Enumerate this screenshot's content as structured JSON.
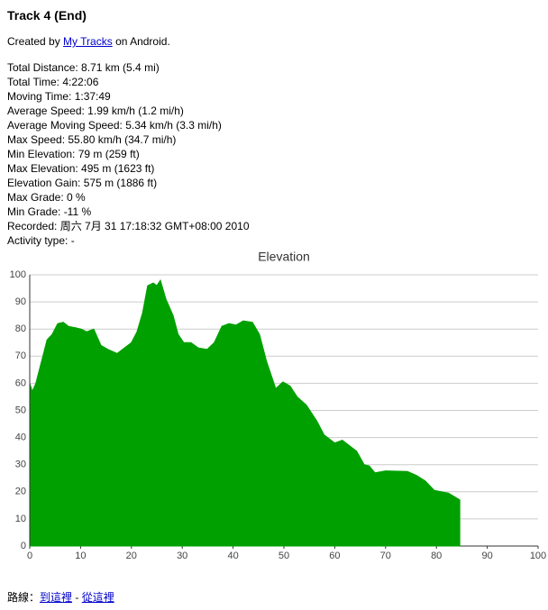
{
  "header": {
    "title": "Track 4 (End)"
  },
  "created": {
    "before": "Created by",
    "link": "My Tracks",
    "after": "on Android."
  },
  "stats": [
    "Total Distance: 8.71 km (5.4 mi)",
    "Total Time: 4:22:06",
    "Moving Time: 1:37:49",
    "Average Speed: 1.99 km/h (1.2 mi/h)",
    "Average Moving Speed: 5.34 km/h (3.3 mi/h)",
    "Max Speed: 55.80 km/h (34.7 mi/h)",
    "Min Elevation: 79 m (259 ft)",
    "Max Elevation: 495 m (1623 ft)",
    "Elevation Gain: 575 m (1886 ft)",
    "Max Grade: 0 %",
    "Min Grade: -11 %",
    "Recorded: 周六 7月 31 17:18:32 GMT+08:00 2010",
    "Activity type: -"
  ],
  "chart_data": {
    "type": "area",
    "title": "Elevation",
    "color": "#00a000",
    "grid": true,
    "x": [
      0,
      0.5,
      1.2,
      2.3,
      3.4,
      4.4,
      5.5,
      6.6,
      7.6,
      9,
      10.1,
      11.2,
      12.6,
      14,
      15.4,
      17.2,
      18.6,
      20,
      21.1,
      22.2,
      23.2,
      24.3,
      25,
      25.7,
      26.8,
      28.2,
      29.2,
      30.3,
      31.7,
      33.2,
      34.9,
      36.3,
      37.8,
      39.2,
      40.6,
      42,
      43.8,
      45.2,
      46.6,
      48.4,
      49.8,
      51.2,
      52.6,
      54.4,
      56.5,
      57.9,
      60,
      61.5,
      62.9,
      64.3,
      65.8,
      66.8,
      67.9,
      70,
      74.3,
      76.1,
      77.8,
      79.6,
      82.4,
      84.6
    ],
    "values": [
      60,
      57,
      60,
      68,
      76,
      78,
      82,
      82.5,
      81,
      80.5,
      80,
      79,
      80,
      74,
      72.5,
      71,
      73,
      75,
      79,
      86,
      96,
      97,
      96,
      98,
      91,
      85,
      78,
      75,
      75,
      73,
      72.5,
      75,
      81,
      82,
      81.5,
      83,
      82.5,
      78,
      68,
      58,
      60.5,
      59,
      55,
      52,
      46,
      41,
      38,
      39,
      37,
      35,
      30,
      29.5,
      27,
      27.7,
      27.5,
      26,
      24,
      20.5,
      19.5,
      17
    ],
    "xlim": [
      0,
      100
    ],
    "xticks": [
      0,
      10,
      20,
      30,
      40,
      50,
      60,
      70,
      80,
      90,
      100
    ],
    "ylim": [
      0,
      100
    ],
    "yticks": [
      0,
      10,
      20,
      30,
      40,
      50,
      60,
      70,
      80,
      90,
      100
    ]
  },
  "footer": {
    "label": "路線：",
    "link1": "到這裡",
    "sep": "-",
    "link2": "從這裡"
  }
}
